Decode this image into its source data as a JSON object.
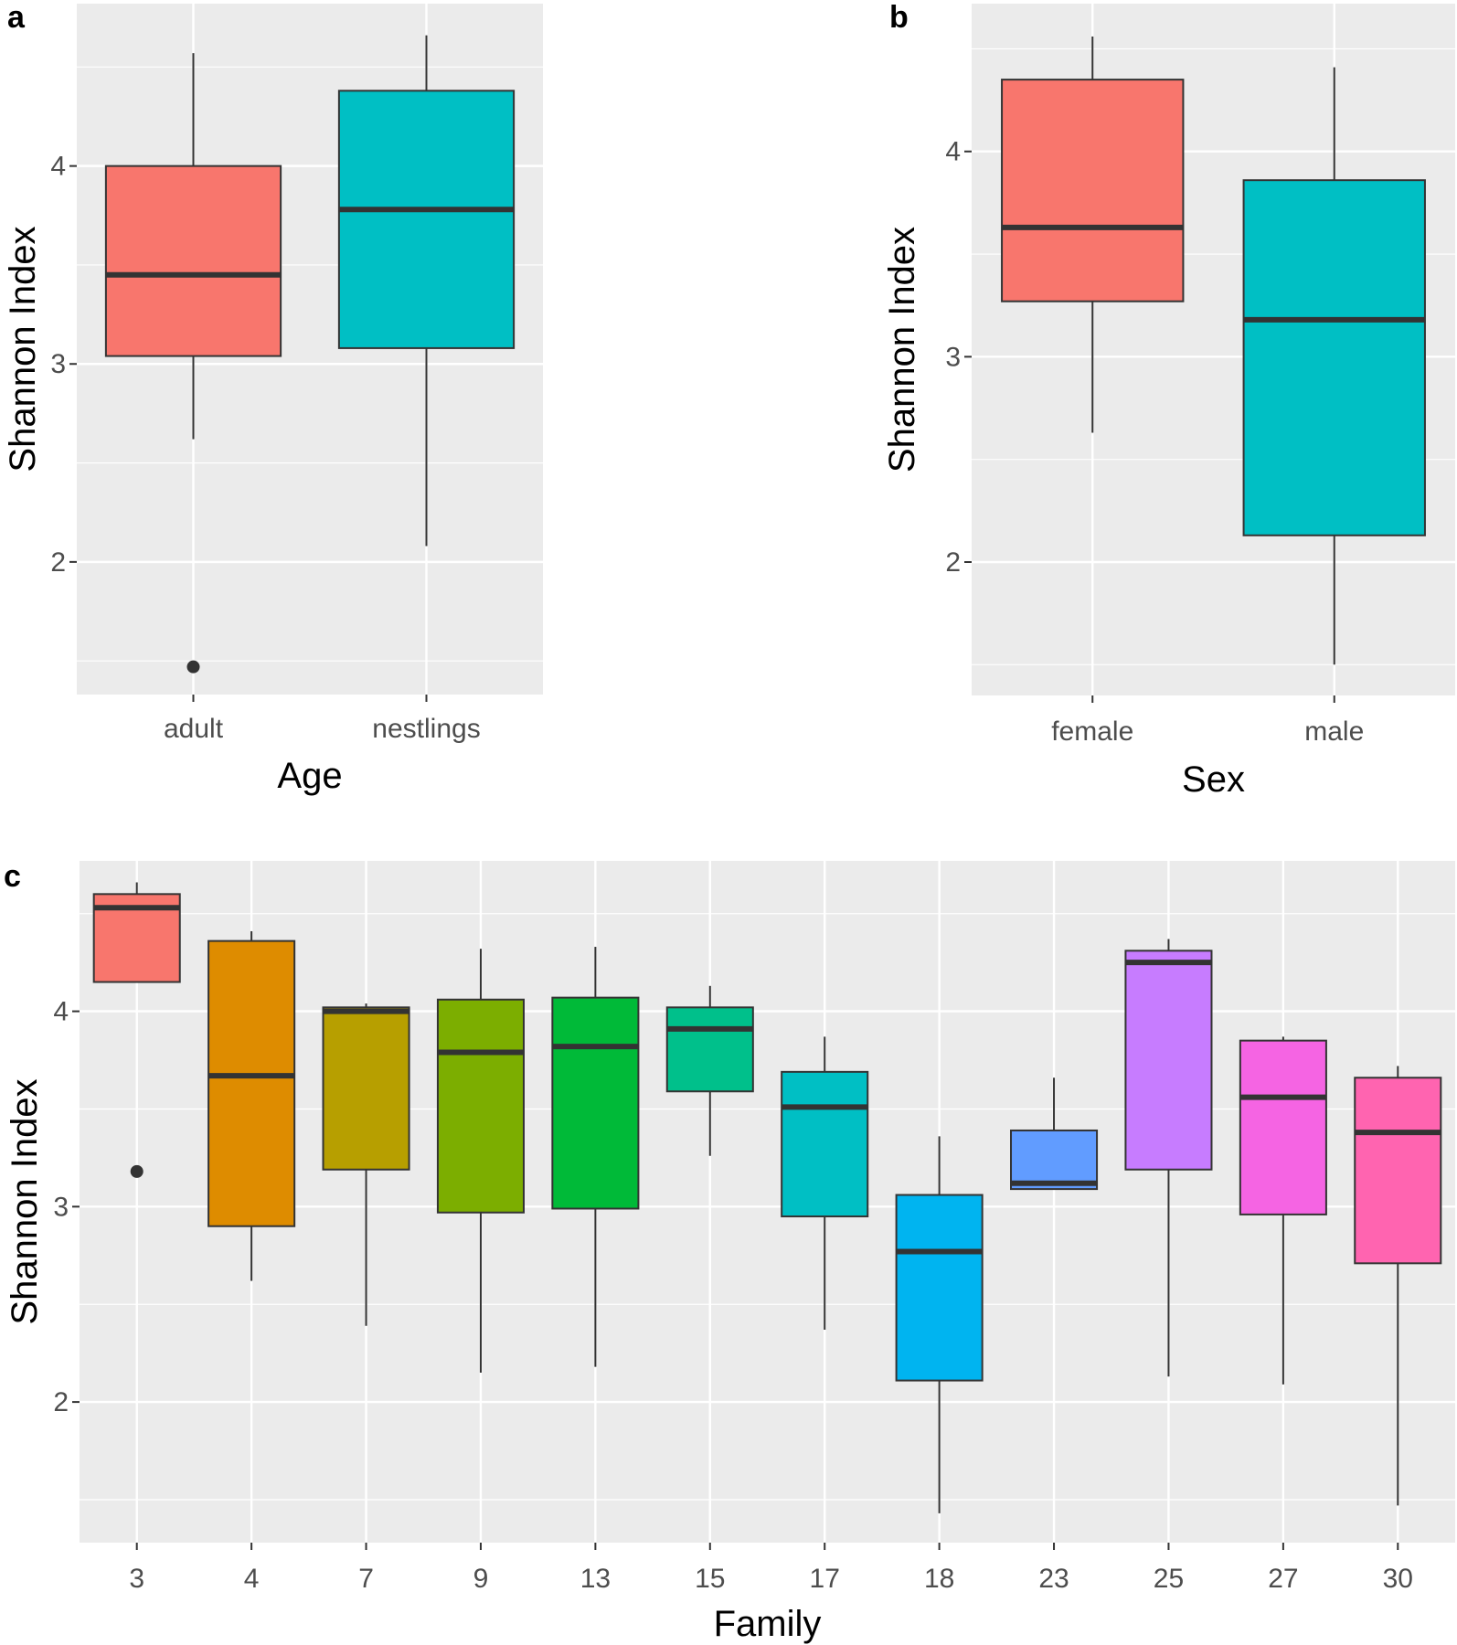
{
  "chart_data": [
    {
      "panel_label": "a",
      "type": "boxplot",
      "xlabel": "Age",
      "ylabel": "Shannon Index",
      "ylim": [
        1.33,
        4.82
      ],
      "yticks": [
        2,
        3,
        4
      ],
      "ytick_labels": [
        "2",
        "3",
        "4"
      ],
      "grid": true,
      "categories": [
        "adult",
        "nestlings"
      ],
      "boxes": [
        {
          "category": "adult",
          "color": "#F8766D",
          "whisker_low": 2.62,
          "q1": 3.04,
          "median": 3.45,
          "q3": 4.0,
          "whisker_high": 4.57,
          "outliers": [
            1.47
          ]
        },
        {
          "category": "nestlings",
          "color": "#00BFC4",
          "whisker_low": 2.08,
          "q1": 3.08,
          "median": 3.78,
          "q3": 4.38,
          "whisker_high": 4.66,
          "outliers": []
        }
      ]
    },
    {
      "panel_label": "b",
      "type": "boxplot",
      "xlabel": "Sex",
      "ylabel": "Shannon Index",
      "ylim": [
        1.35,
        4.72
      ],
      "yticks": [
        2,
        3,
        4
      ],
      "ytick_labels": [
        "2",
        "3",
        "4"
      ],
      "grid": true,
      "categories": [
        "female",
        "male"
      ],
      "boxes": [
        {
          "category": "female",
          "color": "#F8766D",
          "whisker_low": 2.63,
          "q1": 3.27,
          "median": 3.63,
          "q3": 4.35,
          "whisker_high": 4.56,
          "outliers": []
        },
        {
          "category": "male",
          "color": "#00BFC4",
          "whisker_low": 1.5,
          "q1": 2.13,
          "median": 3.18,
          "q3": 3.86,
          "whisker_high": 4.41,
          "outliers": []
        }
      ]
    },
    {
      "panel_label": "c",
      "type": "boxplot",
      "xlabel": "Family",
      "ylabel": "Shannon Index",
      "ylim": [
        1.28,
        4.77
      ],
      "yticks": [
        2,
        3,
        4
      ],
      "ytick_labels": [
        "2",
        "3",
        "4"
      ],
      "grid": true,
      "categories": [
        "3",
        "4",
        "7",
        "9",
        "13",
        "15",
        "17",
        "18",
        "23",
        "25",
        "27",
        "30"
      ],
      "boxes": [
        {
          "category": "3",
          "color": "#F8766D",
          "whisker_low": 4.15,
          "q1": 4.15,
          "median": 4.53,
          "q3": 4.6,
          "whisker_high": 4.66,
          "outliers": [
            3.18
          ]
        },
        {
          "category": "4",
          "color": "#DE8C00",
          "whisker_low": 2.62,
          "q1": 2.9,
          "median": 3.67,
          "q3": 4.36,
          "whisker_high": 4.41,
          "outliers": []
        },
        {
          "category": "7",
          "color": "#B79F00",
          "whisker_low": 2.39,
          "q1": 3.19,
          "median": 4.0,
          "q3": 4.02,
          "whisker_high": 4.04,
          "outliers": []
        },
        {
          "category": "9",
          "color": "#7CAE00",
          "whisker_low": 2.15,
          "q1": 2.97,
          "median": 3.79,
          "q3": 4.06,
          "whisker_high": 4.32,
          "outliers": []
        },
        {
          "category": "13",
          "color": "#00BA38",
          "whisker_low": 2.18,
          "q1": 2.99,
          "median": 3.82,
          "q3": 4.07,
          "whisker_high": 4.33,
          "outliers": []
        },
        {
          "category": "15",
          "color": "#00C08B",
          "whisker_low": 3.26,
          "q1": 3.59,
          "median": 3.91,
          "q3": 4.02,
          "whisker_high": 4.13,
          "outliers": []
        },
        {
          "category": "17",
          "color": "#00BFC4",
          "whisker_low": 2.37,
          "q1": 2.95,
          "median": 3.51,
          "q3": 3.69,
          "whisker_high": 3.87,
          "outliers": []
        },
        {
          "category": "18",
          "color": "#00B4F0",
          "whisker_low": 1.43,
          "q1": 2.11,
          "median": 2.77,
          "q3": 3.06,
          "whisker_high": 3.36,
          "outliers": []
        },
        {
          "category": "23",
          "color": "#619CFF",
          "whisker_low": 3.09,
          "q1": 3.09,
          "median": 3.12,
          "q3": 3.39,
          "whisker_high": 3.66,
          "outliers": []
        },
        {
          "category": "25",
          "color": "#C77CFF",
          "whisker_low": 2.13,
          "q1": 3.19,
          "median": 4.25,
          "q3": 4.31,
          "whisker_high": 4.37,
          "outliers": []
        },
        {
          "category": "27",
          "color": "#F564E3",
          "whisker_low": 2.09,
          "q1": 2.96,
          "median": 3.56,
          "q3": 3.85,
          "whisker_high": 3.87,
          "outliers": []
        },
        {
          "category": "30",
          "color": "#FF64B0",
          "whisker_low": 1.47,
          "q1": 2.71,
          "median": 3.38,
          "q3": 3.66,
          "whisker_high": 3.72,
          "outliers": []
        }
      ]
    }
  ]
}
